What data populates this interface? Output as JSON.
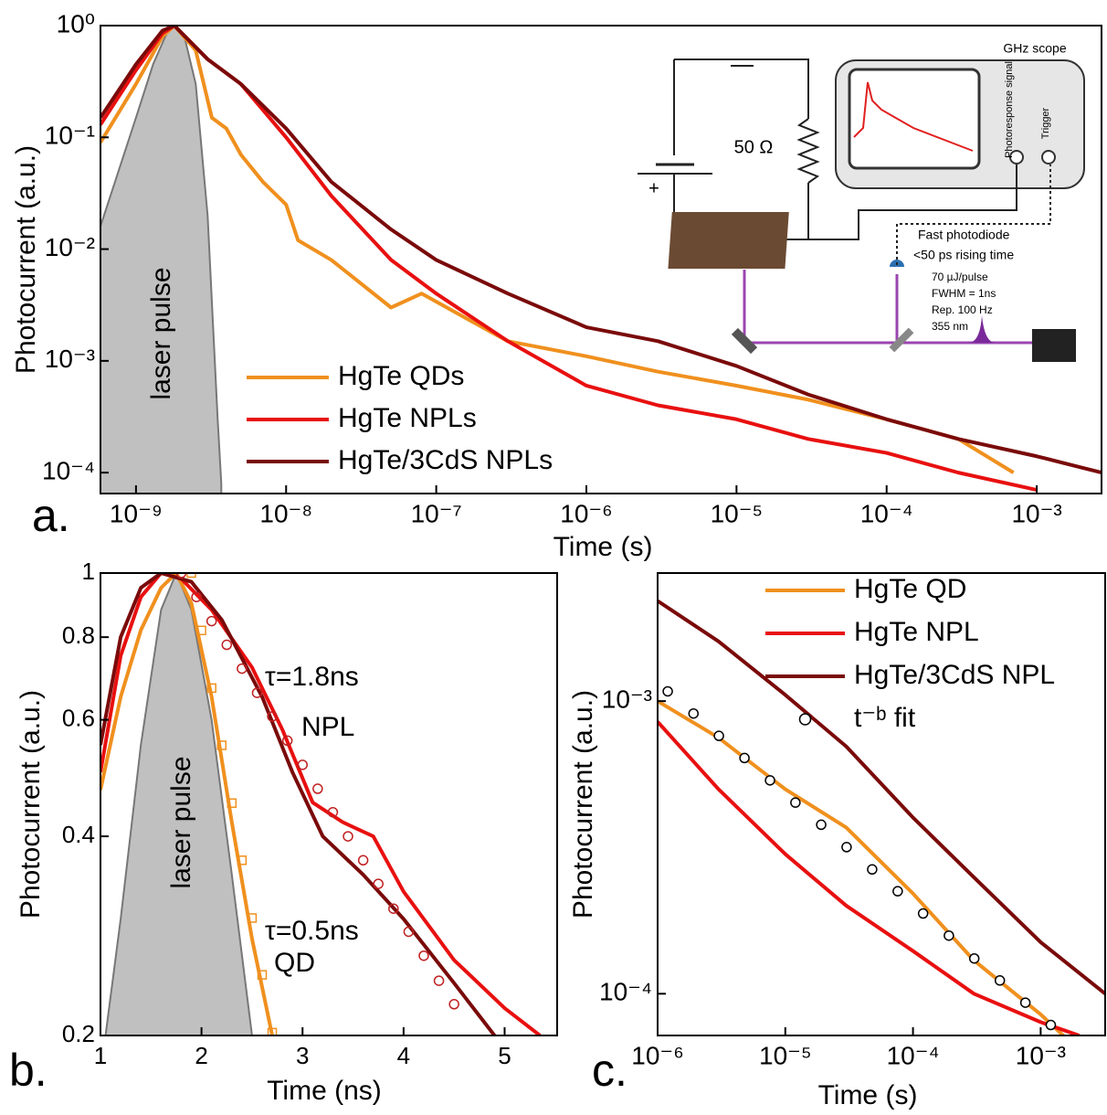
{
  "chart_data": [
    {
      "type": "line",
      "panel_label": "a.",
      "xlabel": "Time (s)",
      "ylabel": "Photocurrent (a.u.)",
      "xscale": "log",
      "yscale": "log",
      "xlim": [
        5.8e-10,
        0.0027
      ],
      "ylim": [
        6.5e-05,
        1
      ],
      "xticks": [
        {
          "value": 1e-09,
          "label": "10⁻⁹"
        },
        {
          "value": 1e-08,
          "label": "10⁻⁸"
        },
        {
          "value": 1e-07,
          "label": "10⁻⁷"
        },
        {
          "value": 1e-06,
          "label": "10⁻⁶"
        },
        {
          "value": 1e-05,
          "label": "10⁻⁵"
        },
        {
          "value": 0.0001,
          "label": "10⁻⁴"
        },
        {
          "value": 0.001,
          "label": "10⁻³"
        }
      ],
      "yticks": [
        {
          "value": 1,
          "label": "10⁰"
        },
        {
          "value": 0.1,
          "label": "10⁻¹"
        },
        {
          "value": 0.01,
          "label": "10⁻²"
        },
        {
          "value": 0.001,
          "label": "10⁻³"
        },
        {
          "value": 0.0001,
          "label": "10⁻⁴"
        }
      ],
      "pulse": {
        "label": "laser pulse",
        "color": "#c0c0c0",
        "x": [
          5.8e-10,
          8e-10,
          1e-09,
          1.3e-09,
          1.6e-09,
          1.8e-09,
          2.1e-09,
          2.5e-09,
          3e-09,
          3.5e-09,
          3.7e-09
        ],
        "values": [
          0.016,
          0.06,
          0.15,
          0.45,
          0.85,
          1,
          0.8,
          0.3,
          0.02,
          0.0003,
          8e-05
        ]
      },
      "series": [
        {
          "name": "HgTe QDs",
          "color": "#f0901e",
          "x": [
            5.8e-10,
            1e-09,
            1.5e-09,
            1.8e-09,
            2.5e-09,
            3.2e-09,
            4e-09,
            5e-09,
            7e-09,
            1e-08,
            1.2e-08,
            2e-08,
            5e-08,
            8e-08,
            1.5e-07,
            3e-07,
            1e-06,
            3e-06,
            1e-05,
            3e-05,
            0.0001,
            0.0003,
            0.0007
          ],
          "values": [
            0.09,
            0.3,
            0.8,
            1,
            0.6,
            0.15,
            0.12,
            0.07,
            0.04,
            0.025,
            0.012,
            0.008,
            0.003,
            0.004,
            0.0025,
            0.0015,
            0.0011,
            0.0008,
            0.0006,
            0.00045,
            0.0003,
            0.0002,
            0.0001
          ]
        },
        {
          "name": "HgTe NPLs",
          "color": "#e81010",
          "x": [
            5.8e-10,
            1e-09,
            1.5e-09,
            1.8e-09,
            3e-09,
            5e-09,
            1e-08,
            2e-08,
            5e-08,
            1e-07,
            3e-07,
            1e-06,
            3e-06,
            1e-05,
            3e-05,
            0.0001,
            0.0003,
            0.001
          ],
          "values": [
            0.13,
            0.4,
            0.85,
            1,
            0.5,
            0.3,
            0.1,
            0.03,
            0.008,
            0.004,
            0.0015,
            0.0006,
            0.0004,
            0.0003,
            0.0002,
            0.00015,
            0.0001,
            7e-05
          ]
        },
        {
          "name": "HgTe/3CdS NPLs",
          "color": "#7a0a0a",
          "x": [
            5.8e-10,
            1e-09,
            1.5e-09,
            1.8e-09,
            3e-09,
            5e-09,
            1e-08,
            2e-08,
            5e-08,
            1e-07,
            3e-07,
            1e-06,
            3e-06,
            1e-05,
            3e-05,
            0.0001,
            0.0003,
            0.001,
            0.0027
          ],
          "values": [
            0.15,
            0.45,
            0.9,
            1,
            0.5,
            0.3,
            0.12,
            0.04,
            0.015,
            0.008,
            0.004,
            0.002,
            0.0015,
            0.0009,
            0.0005,
            0.0003,
            0.0002,
            0.00014,
            0.0001
          ]
        }
      ]
    },
    {
      "type": "line",
      "panel_label": "b.",
      "xlabel": "Time (ns)",
      "ylabel": "Photocurrent (a.u.)",
      "xscale": "linear",
      "yscale": "log",
      "xlim": [
        1,
        5.52
      ],
      "ylim": [
        0.2,
        1
      ],
      "xticks": [
        1,
        2,
        3,
        4,
        5
      ],
      "yticks": [
        0.2,
        0.4,
        0.6,
        0.8,
        1
      ],
      "pulse": {
        "label": "laser pulse",
        "color": "#c0c0c0",
        "x": [
          1.05,
          1.2,
          1.4,
          1.6,
          1.75,
          1.9,
          2.1,
          2.3,
          2.5
        ],
        "values": [
          0.2,
          0.3,
          0.55,
          0.88,
          1,
          0.88,
          0.6,
          0.35,
          0.2
        ]
      },
      "series": [
        {
          "color": "#f0901e",
          "x": [
            1,
            1.2,
            1.4,
            1.6,
            1.75,
            1.9,
            2.1,
            2.3,
            2.5,
            2.7
          ],
          "values": [
            0.47,
            0.65,
            0.82,
            0.95,
            1,
            0.9,
            0.65,
            0.42,
            0.28,
            0.2
          ]
        },
        {
          "color": "#e81010",
          "x": [
            1,
            1.2,
            1.4,
            1.6,
            1.8,
            2.1,
            2.5,
            2.8,
            3.1,
            3.4,
            3.7,
            4,
            4.5,
            5,
            5.35
          ],
          "values": [
            0.5,
            0.75,
            0.92,
            1,
            0.98,
            0.88,
            0.72,
            0.58,
            0.45,
            0.42,
            0.4,
            0.33,
            0.26,
            0.22,
            0.2
          ]
        },
        {
          "color": "#7a0a0a",
          "x": [
            1,
            1.2,
            1.4,
            1.6,
            1.9,
            2.2,
            2.6,
            2.9,
            3.2,
            3.6,
            4,
            4.5,
            4.9
          ],
          "values": [
            0.55,
            0.8,
            0.95,
            1,
            0.97,
            0.85,
            0.65,
            0.5,
            0.4,
            0.35,
            0.3,
            0.24,
            0.2
          ]
        },
        {
          "color": "#c02020",
          "marker": "circle",
          "fill": "none",
          "x": [
            1.8,
            1.95,
            2.1,
            2.25,
            2.4,
            2.55,
            2.7,
            2.85,
            3.0,
            3.15,
            3.3,
            3.45,
            3.6,
            3.75,
            3.9,
            4.05,
            4.2,
            4.35,
            4.5
          ],
          "values": [
            1,
            0.92,
            0.846,
            0.779,
            0.717,
            0.659,
            0.607,
            0.558,
            0.513,
            0.472,
            0.435,
            0.4,
            0.368,
            0.339,
            0.311,
            0.287,
            0.264,
            0.242,
            0.223
          ]
        },
        {
          "color": "#f0901e",
          "marker": "square",
          "fill": "none",
          "x": [
            1.9,
            2.0,
            2.1,
            2.2,
            2.3,
            2.4,
            2.5,
            2.6,
            2.7
          ],
          "values": [
            1,
            0.819,
            0.67,
            0.549,
            0.449,
            0.368,
            0.301,
            0.247,
            0.202
          ]
        }
      ],
      "annotations": [
        "τ=1.8ns",
        "NPL",
        "τ=0.5ns",
        "QD"
      ]
    },
    {
      "type": "line",
      "panel_label": "c.",
      "xlabel": "Time (s)",
      "ylabel": "Photocurrent (a.u.)",
      "xscale": "log",
      "yscale": "log",
      "xlim": [
        1e-06,
        0.0032
      ],
      "ylim": [
        7.2e-05,
        0.00274
      ],
      "xticks": [
        {
          "value": 1e-06,
          "label": "10⁻⁶"
        },
        {
          "value": 1e-05,
          "label": "10⁻⁵"
        },
        {
          "value": 0.0001,
          "label": "10⁻⁴"
        },
        {
          "value": 0.001,
          "label": "10⁻³"
        }
      ],
      "yticks": [
        {
          "value": 0.0001,
          "label": "10⁻⁴"
        },
        {
          "value": 0.001,
          "label": "10⁻³"
        }
      ],
      "series": [
        {
          "name": "HgTe QD",
          "color": "#f0901e",
          "x": [
            1e-06,
            3e-06,
            1e-05,
            3e-05,
            0.0001,
            0.0003,
            0.001,
            0.0015
          ],
          "values": [
            0.001,
            0.00075,
            0.0005,
            0.00037,
            0.00022,
            0.00013,
            8.5e-05,
            7.2e-05
          ]
        },
        {
          "name": "HgTe NPL",
          "color": "#e81010",
          "x": [
            1e-06,
            3e-06,
            1e-05,
            3e-05,
            0.0001,
            0.0003,
            0.001,
            0.002
          ],
          "values": [
            0.00085,
            0.0005,
            0.0003,
            0.0002,
            0.00014,
            0.0001,
            8e-05,
            7.2e-05
          ]
        },
        {
          "name": "HgTe/3CdS NPL",
          "color": "#7a0a0a",
          "x": [
            1e-06,
            3e-06,
            1e-05,
            3e-05,
            0.0001,
            0.0003,
            0.001,
            0.0032
          ],
          "values": [
            0.0022,
            0.0016,
            0.00105,
            0.0007,
            0.0004,
            0.00025,
            0.00015,
            0.0001
          ]
        },
        {
          "name": "t⁻ᵇ fit",
          "color": "#000000",
          "marker": "circle",
          "fill": "#ffffff",
          "x": [
            1.2e-06,
            1.91e-06,
            3.02e-06,
            4.79e-06,
            7.59e-06,
            1.2e-05,
            1.91e-05,
            3.02e-05,
            4.79e-05,
            7.59e-05,
            0.00012,
            0.000191,
            0.000302,
            0.000479,
            0.000759,
            0.0012
          ],
          "values": [
            0.00108,
            0.000907,
            0.000761,
            0.000639,
            0.000536,
            0.00045,
            0.000378,
            0.000317,
            0.000266,
            0.000224,
            0.000188,
            0.000158,
            0.000132,
            0.000111,
            9.32e-05,
            7.82e-05
          ]
        }
      ]
    }
  ],
  "inset": {
    "scope": "GHz scope",
    "resistor": "50 Ω",
    "plus": "+",
    "signal": "Photoresponse signal",
    "trigger": "Trigger",
    "photodiode": "Fast photodiode",
    "rise": "<50 ps rising time",
    "energy": "70 µJ/pulse",
    "fwhm": "FWHM = 1ns",
    "rep": "Rep. 100 Hz",
    "wavelength": "355 nm"
  }
}
